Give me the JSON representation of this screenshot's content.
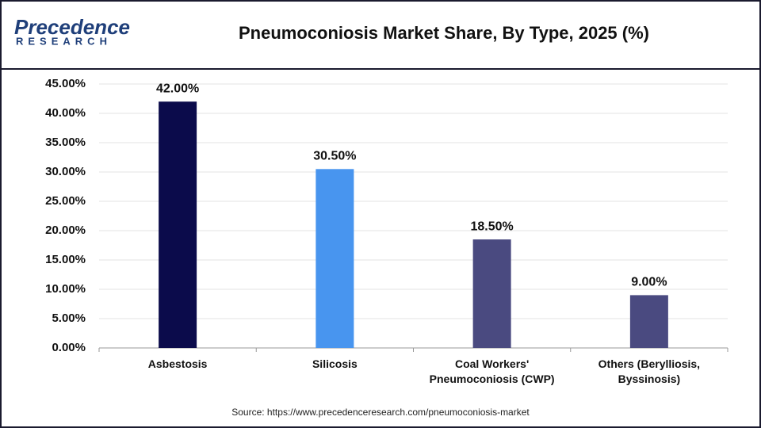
{
  "header": {
    "logo": "Precedence",
    "logo_sub": "RESEARCH"
  },
  "chart_data": {
    "type": "bar",
    "title": "Pneumoconiosis Market Share, By Type, 2025 (%)",
    "categories": [
      "Asbestosis",
      "Silicosis",
      "Coal Workers' Pneumoconiosis (CWP)",
      "Others (Berylliosis, Byssinosis)"
    ],
    "values": [
      42,
      30.5,
      18.5,
      9
    ],
    "value_labels": [
      "42.00%",
      "30.50%",
      "18.50%",
      "9.00%"
    ],
    "colors": [
      "#0b0b4b",
      "#4895ef",
      "#4a4a80",
      "#4a4a80"
    ],
    "ylim": [
      0,
      45
    ],
    "yticks": [
      {
        "value": 0,
        "label": "0.00%"
      },
      {
        "value": 5,
        "label": "5.00%"
      },
      {
        "value": 10,
        "label": "10.00%"
      },
      {
        "value": 15,
        "label": "15.00%"
      },
      {
        "value": 20,
        "label": "20.00%"
      },
      {
        "value": 25,
        "label": "25.00%"
      },
      {
        "value": 30,
        "label": "30.00%"
      },
      {
        "value": 35,
        "label": "35.00%"
      },
      {
        "value": 40,
        "label": "40.00%"
      },
      {
        "value": 45,
        "label": "45.00%"
      }
    ],
    "grid": true,
    "source": "Source: https://www.precedenceresearch.com/pneumoconiosis-market"
  }
}
